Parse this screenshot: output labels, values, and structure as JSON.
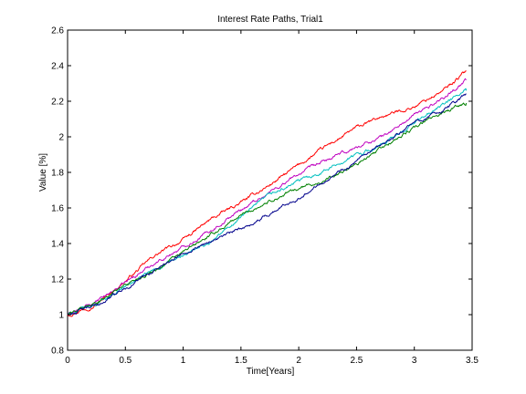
{
  "chart_data": {
    "type": "line",
    "title": "Interest Rate Paths, Trial1",
    "xlabel": "Time[Years]",
    "ylabel": "Value [%]",
    "xlim": [
      0,
      3.5
    ],
    "ylim": [
      0.8,
      2.6
    ],
    "xticks": [
      0,
      0.5,
      1,
      1.5,
      2,
      2.5,
      3,
      3.5
    ],
    "xtick_labels": [
      "0",
      "0.5",
      "1",
      "1.5",
      "2",
      "2.5",
      "3",
      "3.5"
    ],
    "yticks": [
      0.8,
      1,
      1.2,
      1.4,
      1.6,
      1.8,
      2,
      2.2,
      2.4,
      2.6
    ],
    "ytick_labels": [
      "0.8",
      "1",
      "1.2",
      "1.4",
      "1.6",
      "1.8",
      "2",
      "2.2",
      "2.4",
      "2.6"
    ],
    "grid": false,
    "legend": "none",
    "series": [
      {
        "color": "#ff0000",
        "points": [
          [
            0,
            1.0
          ],
          [
            0.25,
            1.06
          ],
          [
            0.5,
            1.19
          ],
          [
            0.75,
            1.33
          ],
          [
            1.0,
            1.42
          ],
          [
            1.25,
            1.54
          ],
          [
            1.5,
            1.63
          ],
          [
            1.75,
            1.73
          ],
          [
            2.0,
            1.84
          ],
          [
            2.25,
            1.95
          ],
          [
            2.5,
            2.05
          ],
          [
            2.75,
            2.12
          ],
          [
            3.0,
            2.17
          ],
          [
            3.25,
            2.26
          ],
          [
            3.45,
            2.37
          ]
        ]
      },
      {
        "color": "#bf00bf",
        "points": [
          [
            0,
            1.0
          ],
          [
            0.25,
            1.07
          ],
          [
            0.5,
            1.18
          ],
          [
            0.75,
            1.29
          ],
          [
            1.0,
            1.38
          ],
          [
            1.25,
            1.48
          ],
          [
            1.5,
            1.59
          ],
          [
            1.75,
            1.69
          ],
          [
            2.0,
            1.79
          ],
          [
            2.25,
            1.87
          ],
          [
            2.5,
            1.94
          ],
          [
            2.75,
            2.01
          ],
          [
            3.0,
            2.12
          ],
          [
            3.25,
            2.22
          ],
          [
            3.45,
            2.32
          ]
        ]
      },
      {
        "color": "#00bfbf",
        "points": [
          [
            0,
            1.0
          ],
          [
            0.25,
            1.06
          ],
          [
            0.5,
            1.16
          ],
          [
            0.75,
            1.25
          ],
          [
            1.0,
            1.33
          ],
          [
            1.25,
            1.41
          ],
          [
            1.5,
            1.55
          ],
          [
            1.75,
            1.67
          ],
          [
            2.0,
            1.75
          ],
          [
            2.25,
            1.82
          ],
          [
            2.5,
            1.9
          ],
          [
            2.75,
            1.96
          ],
          [
            3.0,
            2.08
          ],
          [
            3.25,
            2.18
          ],
          [
            3.45,
            2.26
          ]
        ]
      },
      {
        "color": "#008000",
        "points": [
          [
            0,
            1.0
          ],
          [
            0.25,
            1.07
          ],
          [
            0.5,
            1.17
          ],
          [
            0.75,
            1.25
          ],
          [
            1.0,
            1.35
          ],
          [
            1.25,
            1.45
          ],
          [
            1.5,
            1.56
          ],
          [
            1.75,
            1.64
          ],
          [
            2.0,
            1.71
          ],
          [
            2.25,
            1.76
          ],
          [
            2.5,
            1.84
          ],
          [
            2.75,
            1.95
          ],
          [
            3.0,
            2.05
          ],
          [
            3.25,
            2.14
          ],
          [
            3.45,
            2.19
          ]
        ]
      },
      {
        "color": "#00008b",
        "points": [
          [
            0,
            1.0
          ],
          [
            0.25,
            1.05
          ],
          [
            0.5,
            1.15
          ],
          [
            0.75,
            1.25
          ],
          [
            1.0,
            1.35
          ],
          [
            1.25,
            1.42
          ],
          [
            1.5,
            1.48
          ],
          [
            1.75,
            1.57
          ],
          [
            2.0,
            1.66
          ],
          [
            2.25,
            1.77
          ],
          [
            2.5,
            1.86
          ],
          [
            2.75,
            1.96
          ],
          [
            3.0,
            2.08
          ],
          [
            3.25,
            2.15
          ],
          [
            3.45,
            2.24
          ]
        ]
      }
    ]
  }
}
